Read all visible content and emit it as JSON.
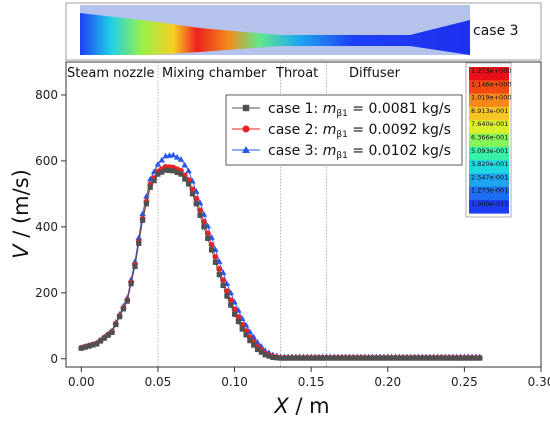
{
  "chart_data": {
    "type": "line",
    "xlabel": "X / m",
    "ylabel": "V / (m/s)",
    "xlim": [
      -0.01,
      0.3
    ],
    "ylim": [
      -25,
      900
    ],
    "xticks": [
      "0.00",
      "0.05",
      "0.10",
      "0.15",
      "0.20",
      "0.25",
      "0.30"
    ],
    "xtick_values": [
      0,
      0.05,
      0.1,
      0.15,
      0.2,
      0.25,
      0.3
    ],
    "yticks": [
      "0",
      "200",
      "400",
      "600",
      "800"
    ],
    "ytick_values": [
      0,
      200,
      400,
      600,
      800
    ],
    "regions": [
      {
        "label": "Steam nozzle",
        "x": 0.0
      },
      {
        "label": "Mixing chamber",
        "x": 0.05
      },
      {
        "label": "Throat",
        "x": 0.13
      },
      {
        "label": "Diffuser",
        "x": 0.16
      }
    ],
    "region_lines": [
      0.05,
      0.13,
      0.16
    ],
    "legend_position": "upper-right",
    "series": [
      {
        "name": "case 1: m",
        "sub": "β1",
        "rest": " = 0.0081 kg/s",
        "color": "#505050",
        "marker": "square",
        "x": [
          0.0,
          0.01,
          0.02,
          0.03,
          0.035,
          0.04,
          0.045,
          0.05,
          0.055,
          0.06,
          0.065,
          0.07,
          0.075,
          0.08,
          0.085,
          0.09,
          0.095,
          0.1,
          0.105,
          0.11,
          0.115,
          0.12,
          0.125,
          0.13,
          0.14,
          0.16,
          0.2,
          0.26
        ],
        "y": [
          32,
          45,
          80,
          175,
          280,
          420,
          520,
          560,
          572,
          570,
          560,
          530,
          470,
          400,
          330,
          255,
          190,
          135,
          90,
          55,
          28,
          12,
          4,
          2,
          2,
          2,
          2,
          2
        ]
      },
      {
        "name": "case 2: m",
        "sub": "β1",
        "rest": " = 0.0092 kg/s",
        "color": "#ee2222",
        "marker": "circle",
        "x": [
          0.0,
          0.01,
          0.02,
          0.03,
          0.035,
          0.04,
          0.045,
          0.05,
          0.055,
          0.06,
          0.065,
          0.07,
          0.075,
          0.08,
          0.085,
          0.09,
          0.095,
          0.1,
          0.105,
          0.11,
          0.115,
          0.12,
          0.125,
          0.13,
          0.135,
          0.14,
          0.16,
          0.2,
          0.26
        ],
        "y": [
          33,
          46,
          82,
          178,
          285,
          425,
          528,
          568,
          582,
          580,
          570,
          542,
          485,
          415,
          345,
          272,
          205,
          150,
          103,
          65,
          36,
          16,
          7,
          3,
          3,
          3,
          3,
          3,
          3
        ]
      },
      {
        "name": "case 3: m",
        "sub": "β1",
        "rest": " = 0.0102 kg/s",
        "color": "#2a56e8",
        "marker": "triangle",
        "x": [
          0.0,
          0.01,
          0.02,
          0.03,
          0.035,
          0.04,
          0.045,
          0.05,
          0.055,
          0.06,
          0.065,
          0.07,
          0.075,
          0.08,
          0.085,
          0.09,
          0.095,
          0.1,
          0.105,
          0.11,
          0.115,
          0.12,
          0.125,
          0.13,
          0.135,
          0.14,
          0.16,
          0.2,
          0.26
        ],
        "y": [
          34,
          48,
          85,
          185,
          295,
          440,
          545,
          590,
          615,
          618,
          605,
          570,
          508,
          438,
          368,
          295,
          228,
          172,
          122,
          82,
          50,
          25,
          12,
          6,
          6,
          6,
          6,
          6,
          6
        ]
      }
    ],
    "inset": {
      "label": "case 3",
      "colorbar_ticks": [
        "1.273e+000",
        "1.146e+000",
        "1.019e+000",
        "8.913e-001",
        "7.640e-001",
        "6.366e-001",
        "5.093e-001",
        "3.820e-001",
        "2.547e-001",
        "1.273e-001",
        "1.000e-015"
      ],
      "colorbar_colors": [
        "#e8101a",
        "#f24a12",
        "#f7891a",
        "#f5c625",
        "#d9ef2a",
        "#86f55a",
        "#37f0a8",
        "#1fd9e0",
        "#1ea4f0",
        "#1f6ef2",
        "#1e3cf5"
      ]
    }
  }
}
